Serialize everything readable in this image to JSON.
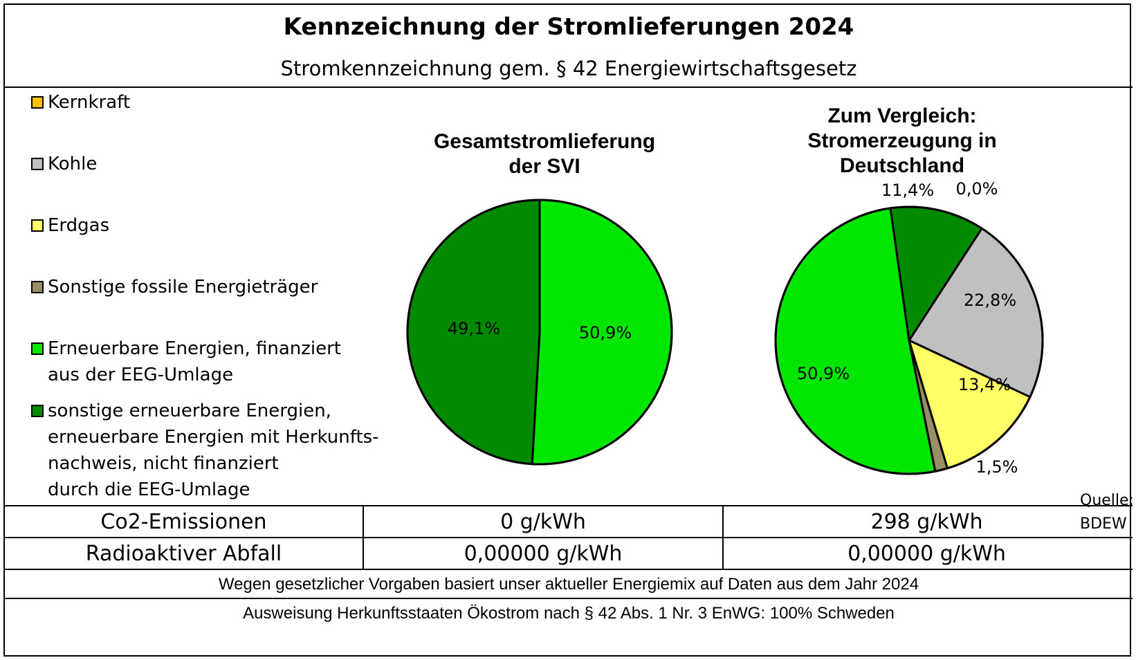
{
  "title": "Kennzeichnung der Stromlieferungen 2024",
  "subtitle": "Stromkennzeichnung gem. § 42 Energiewirtschaftsgesetz",
  "legend": [
    {
      "lines": [
        "Kernkraft"
      ],
      "color": "#FFC000"
    },
    {
      "lines": [
        "Kohle"
      ],
      "color": "#C0C0C0"
    },
    {
      "lines": [
        "Erdgas"
      ],
      "color": "#FFFF66"
    },
    {
      "lines": [
        "Sonstige fossile Energieträger"
      ],
      "color": "#998F67"
    },
    {
      "lines": [
        "Erneuerbare Energien, finanziert",
        "aus der EEG-Umlage"
      ],
      "color": "#00E600"
    },
    {
      "lines": [
        "sonstige erneuerbare Energien,",
        "erneuerbare Energien mit Herkunfts-",
        "nachweis, nicht finanziert",
        "durch die EEG-Umlage"
      ],
      "color": "#008A00"
    }
  ],
  "chart_data": [
    {
      "type": "pie",
      "title_lines": [
        "Gesamtstromlieferung",
        "der SVI"
      ],
      "slices": [
        {
          "label": "Erneuerbare Energien, finanziert aus der EEG-Umlage",
          "value": 50.9,
          "text": "50,9%",
          "color": "#00E600"
        },
        {
          "label": "sonstige erneuerbare Energien",
          "value": 49.1,
          "text": "49,1%",
          "color": "#008A00"
        }
      ]
    },
    {
      "type": "pie",
      "title_lines": [
        "Zum Vergleich:",
        "Stromerzeugung in",
        "Deutschland"
      ],
      "slices": [
        {
          "label": "Kernkraft",
          "value": 0.0,
          "text": "0,0%",
          "color": "#FFC000"
        },
        {
          "label": "Kohle",
          "value": 22.8,
          "text": "22,8%",
          "color": "#C0C0C0"
        },
        {
          "label": "Erdgas",
          "value": 13.4,
          "text": "13,4%",
          "color": "#FFFF66"
        },
        {
          "label": "Sonstige fossile Energieträger",
          "value": 1.5,
          "text": "1,5%",
          "color": "#998F67"
        },
        {
          "label": "Erneuerbare Energien, finanziert aus der EEG-Umlage",
          "value": 50.9,
          "text": "50,9%",
          "color": "#00E600"
        },
        {
          "label": "sonstige erneuerbare Energien",
          "value": 11.4,
          "text": "11,4%",
          "color": "#008A00"
        }
      ]
    }
  ],
  "source_lines": [
    "Quelle:",
    "BDEW"
  ],
  "table": [
    {
      "label": "Co2-Emissionen",
      "svi": "0 g/kWh",
      "de": "298 g/kWh"
    },
    {
      "label": "Radioaktiver Abfall",
      "svi": "0,00000 g/kWh",
      "de": "0,00000 g/kWh"
    }
  ],
  "footer": [
    "Wegen gesetzlicher Vorgaben basiert unser aktueller Energiemix auf Daten aus dem Jahr 2024",
    "Ausweisung Herkunftsstaaten Ökostrom nach § 42 Abs. 1 Nr. 3 EnWG: 100% Schweden"
  ]
}
